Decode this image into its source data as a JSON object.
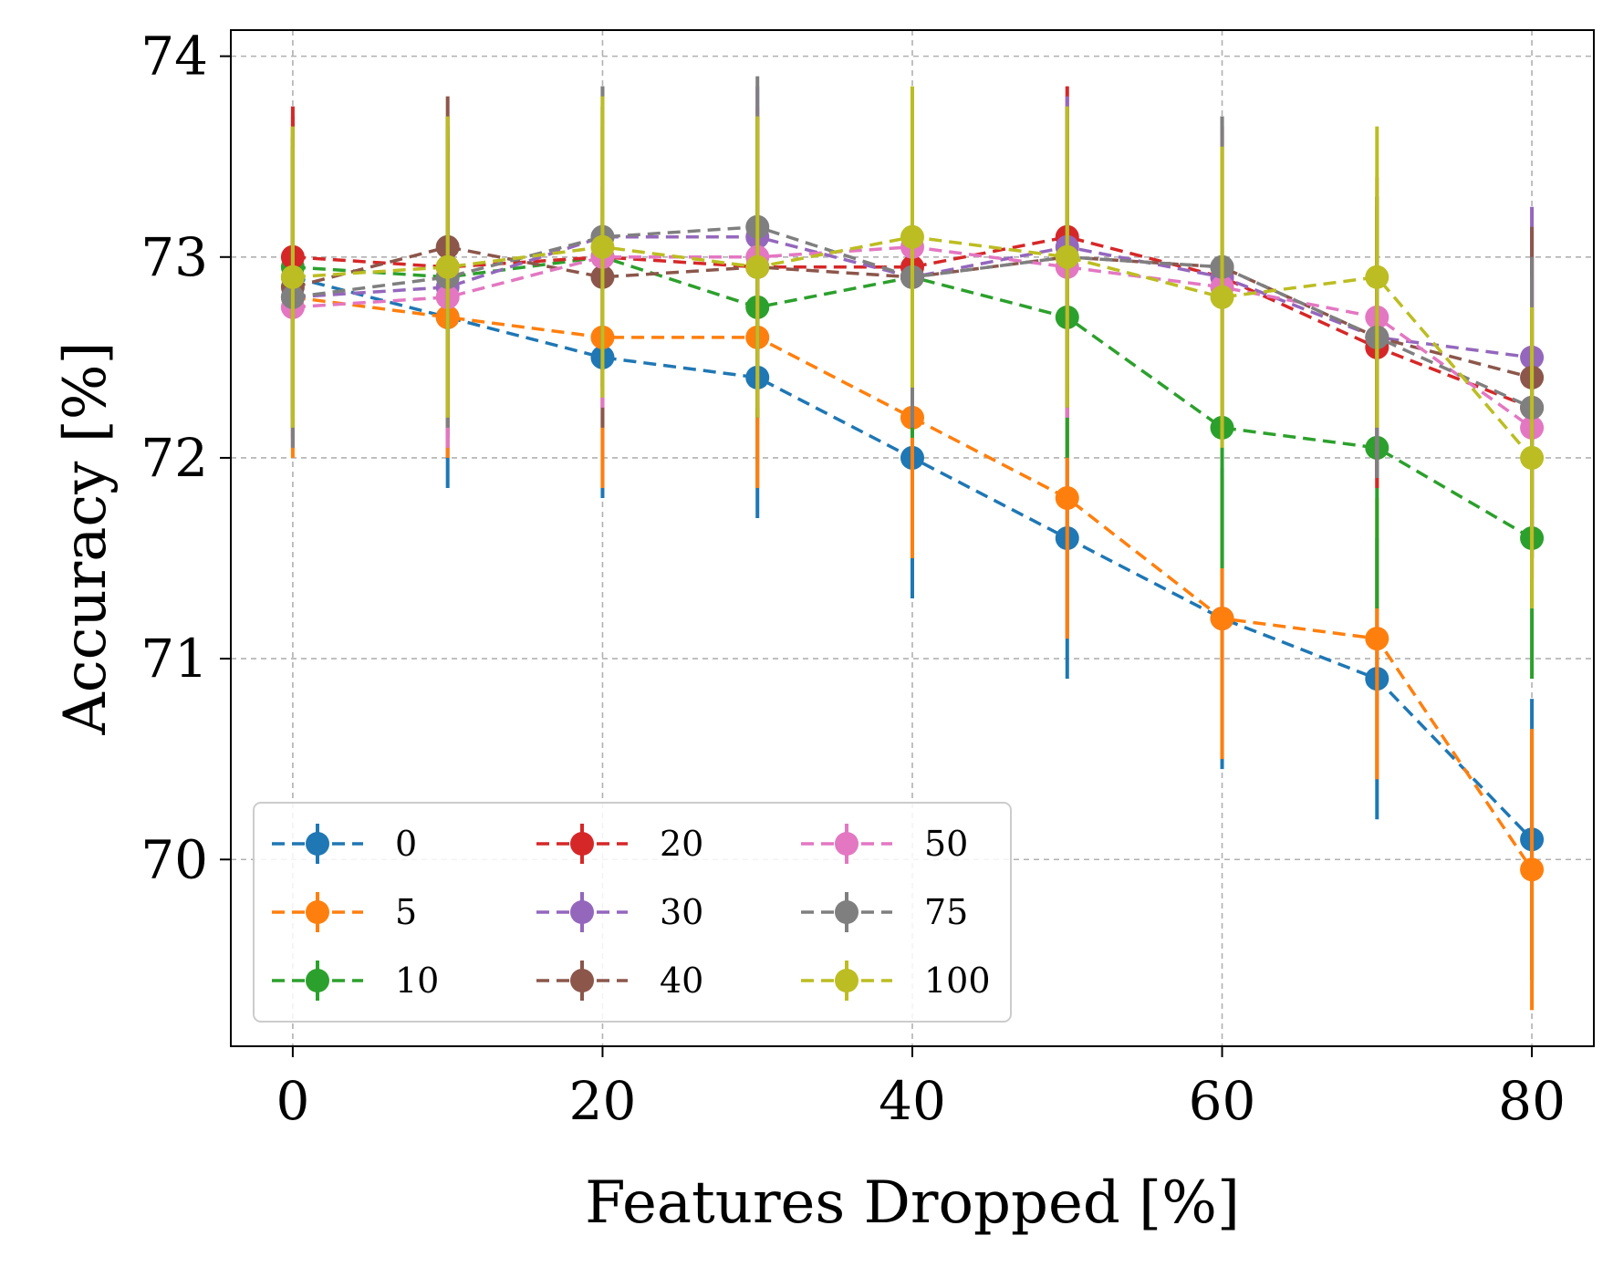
{
  "chart_data": {
    "type": "line",
    "xlabel": "Features Dropped [%]",
    "ylabel": "Accuracy [%]",
    "xlim": [
      -4,
      84
    ],
    "ylim": [
      69.07,
      74.13
    ],
    "xticks": [
      0,
      20,
      40,
      60,
      80
    ],
    "yticks": [
      70,
      71,
      72,
      73,
      74
    ],
    "grid": true,
    "error_bars": true,
    "legend": {
      "placement": "lower-left",
      "columns": 3
    },
    "x": [
      0,
      10,
      20,
      30,
      40,
      50,
      60,
      70,
      80
    ],
    "series": [
      {
        "name": "0",
        "color": "#1f77b4",
        "values": [
          72.9,
          72.7,
          72.5,
          72.4,
          72.0,
          71.6,
          71.2,
          70.9,
          70.1
        ],
        "err": [
          0.75,
          0.85,
          0.7,
          0.7,
          0.7,
          0.7,
          0.75,
          0.7,
          0.7
        ]
      },
      {
        "name": "5",
        "color": "#ff7f0e",
        "values": [
          72.8,
          72.7,
          72.6,
          72.6,
          72.2,
          71.8,
          71.2,
          71.1,
          69.95
        ],
        "err": [
          0.8,
          0.7,
          0.75,
          0.75,
          0.7,
          0.7,
          0.7,
          0.7,
          0.7
        ]
      },
      {
        "name": "10",
        "color": "#2ca02c",
        "values": [
          72.95,
          72.9,
          73.0,
          72.75,
          72.9,
          72.7,
          72.15,
          72.05,
          71.6
        ],
        "err": [
          0.75,
          0.75,
          0.75,
          0.55,
          0.8,
          0.7,
          0.7,
          0.8,
          0.7
        ]
      },
      {
        "name": "20",
        "color": "#d62728",
        "values": [
          73.0,
          72.95,
          73.0,
          72.95,
          72.95,
          73.1,
          72.9,
          72.55,
          72.25
        ],
        "err": [
          0.75,
          0.75,
          0.75,
          0.75,
          0.75,
          0.75,
          0.75,
          0.7,
          0.75
        ]
      },
      {
        "name": "30",
        "color": "#9467bd",
        "values": [
          72.8,
          72.85,
          73.1,
          73.1,
          72.9,
          73.05,
          72.9,
          72.6,
          72.5
        ],
        "err": [
          0.75,
          0.75,
          0.75,
          0.75,
          0.75,
          0.75,
          0.75,
          0.7,
          0.75
        ]
      },
      {
        "name": "40",
        "color": "#8c564b",
        "values": [
          72.85,
          73.05,
          72.9,
          72.95,
          72.9,
          73.0,
          72.95,
          72.6,
          72.4
        ],
        "err": [
          0.75,
          0.75,
          0.75,
          0.75,
          0.75,
          0.75,
          0.75,
          0.7,
          0.75
        ]
      },
      {
        "name": "50",
        "color": "#e377c2",
        "values": [
          72.75,
          72.8,
          73.0,
          73.0,
          73.05,
          72.95,
          72.85,
          72.7,
          72.15
        ],
        "err": [
          0.7,
          0.75,
          0.75,
          0.75,
          0.75,
          0.75,
          0.75,
          0.7,
          0.75
        ]
      },
      {
        "name": "75",
        "color": "#7f7f7f",
        "values": [
          72.8,
          72.9,
          73.1,
          73.15,
          72.9,
          73.0,
          72.95,
          72.6,
          72.25
        ],
        "err": [
          0.75,
          0.75,
          0.75,
          0.75,
          0.75,
          0.75,
          0.75,
          0.7,
          0.75
        ]
      },
      {
        "name": "100",
        "color": "#bcbd22",
        "values": [
          72.9,
          72.95,
          73.05,
          72.95,
          73.1,
          73.0,
          72.8,
          72.9,
          72.0
        ],
        "err": [
          0.75,
          0.75,
          0.75,
          0.75,
          0.75,
          0.75,
          0.75,
          0.75,
          0.75
        ]
      }
    ]
  }
}
